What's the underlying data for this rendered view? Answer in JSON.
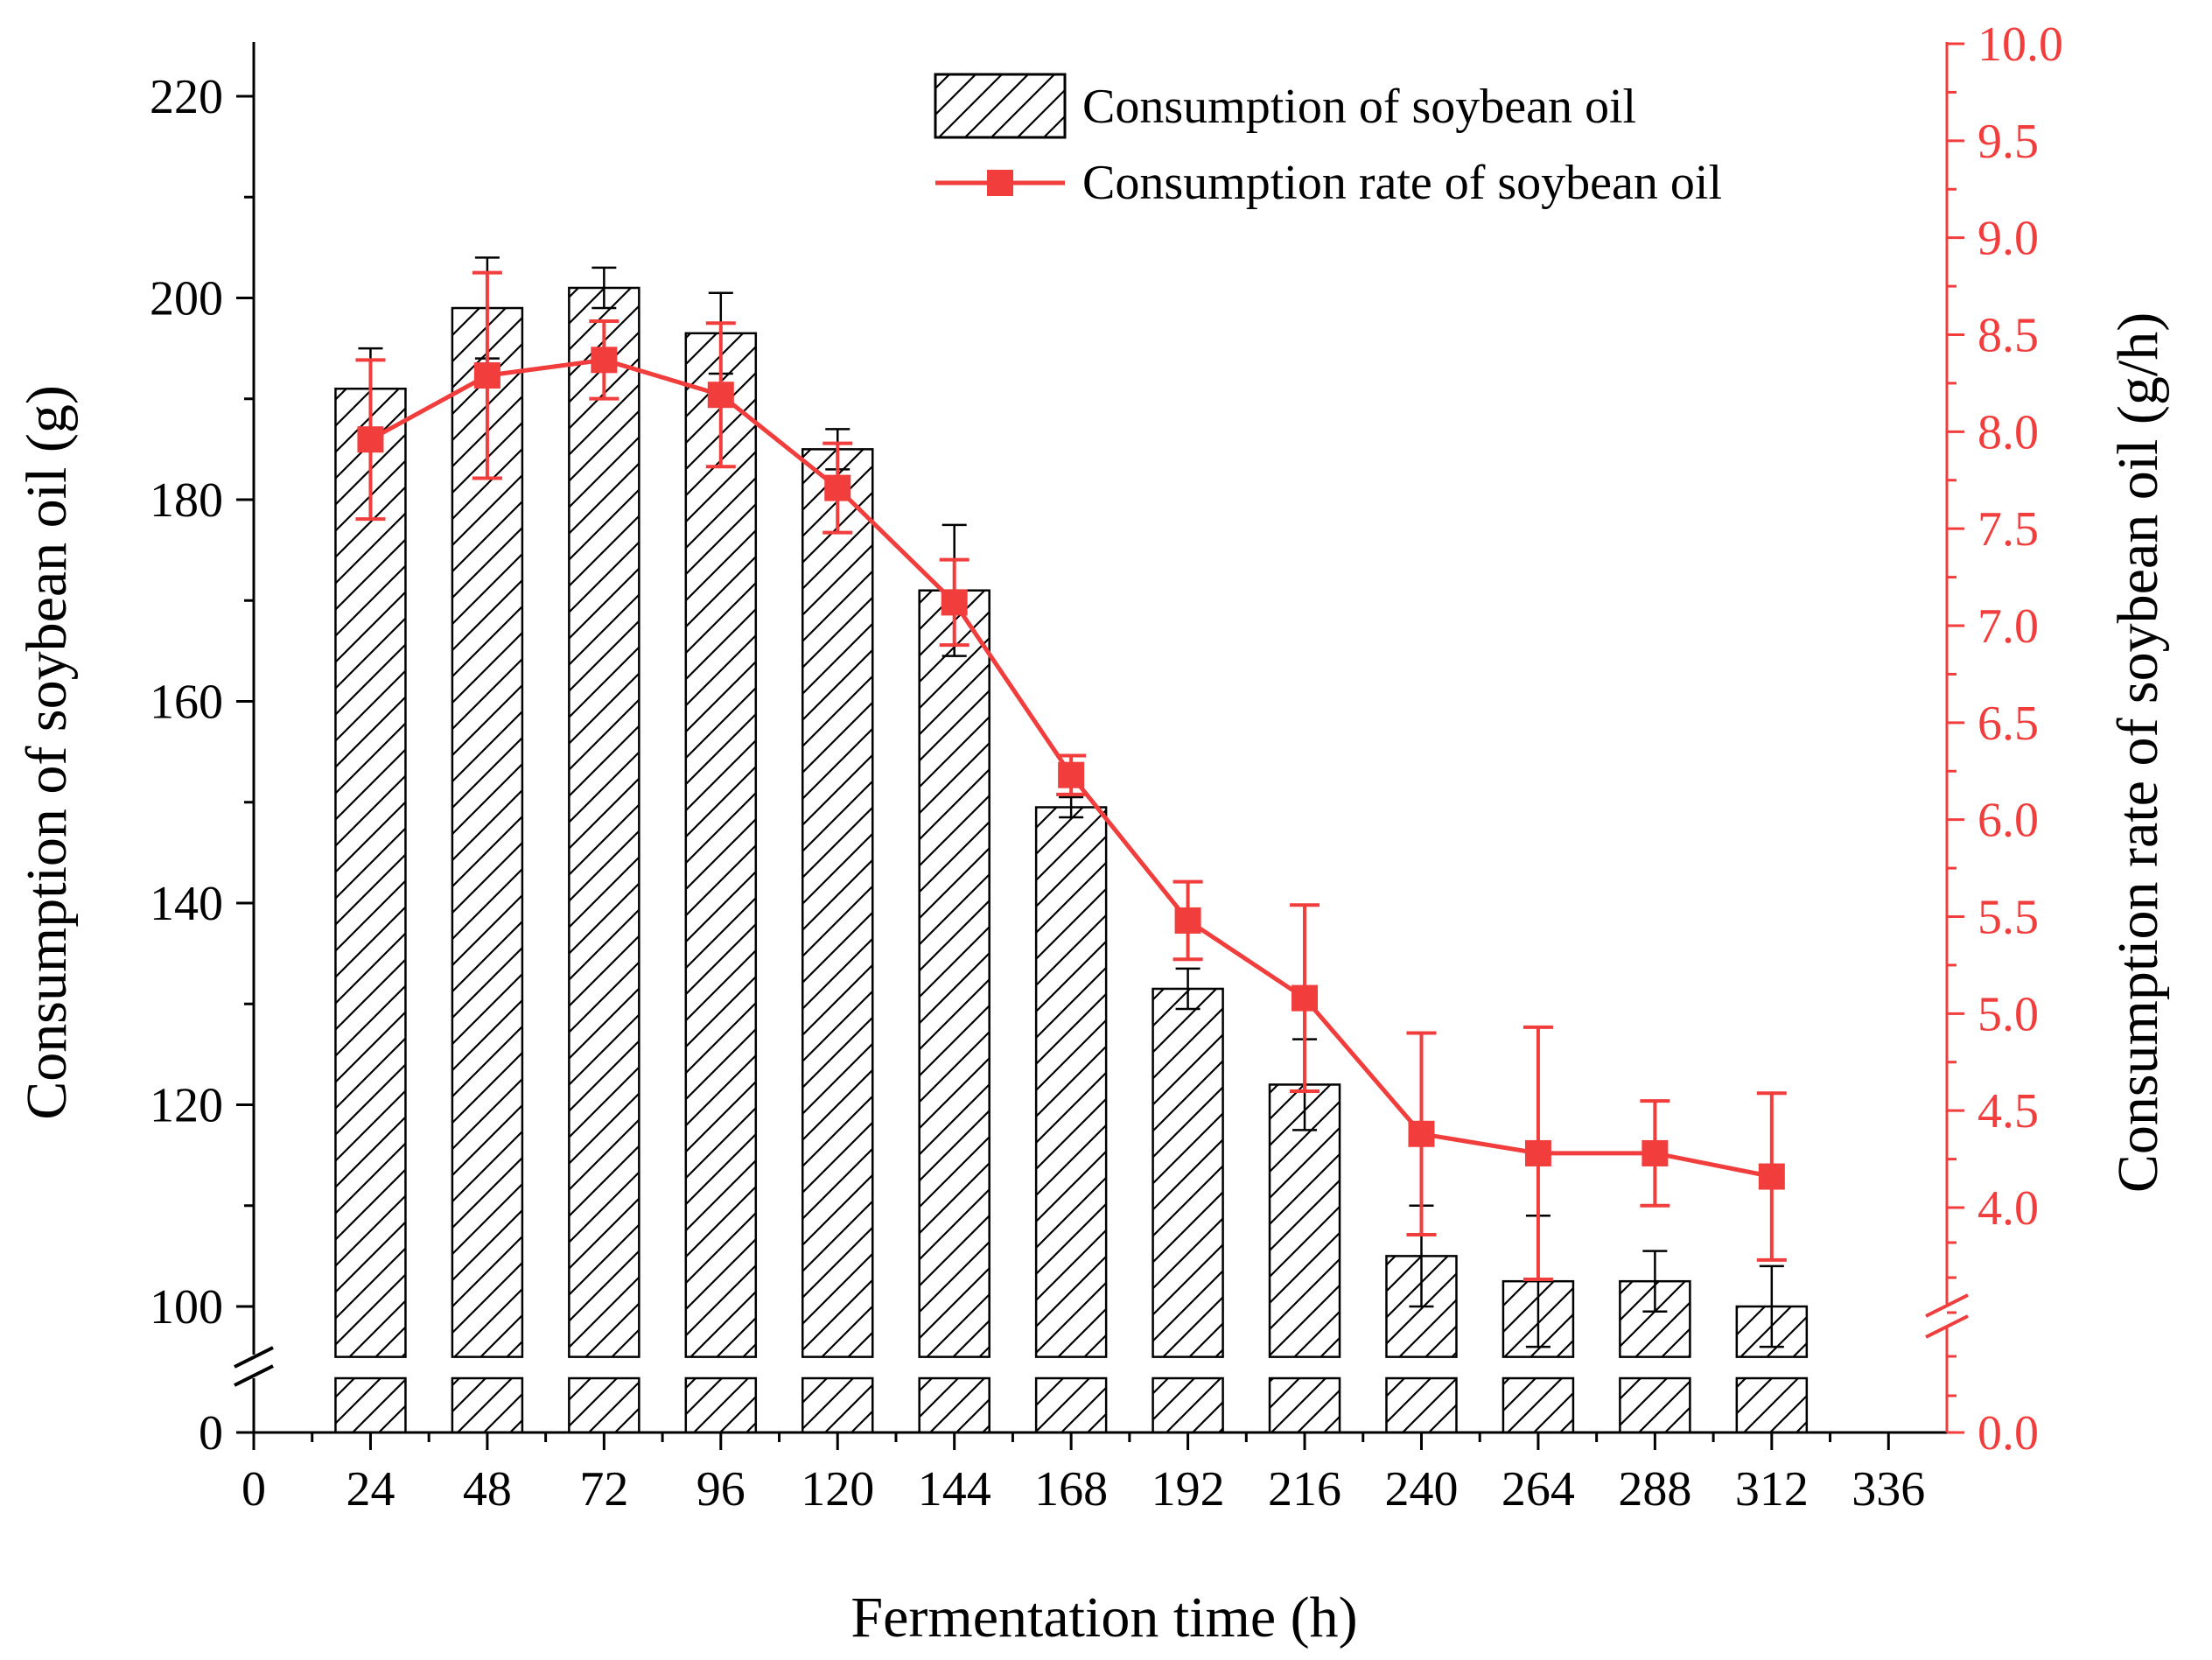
{
  "chart_data": {
    "type": "bar+line",
    "xlabel": "Fermentation time (h)",
    "ylabel_left": "Consumption of soybean oil (g)",
    "ylabel_right": "Consumption rate of soybean oil (g/h)",
    "x_ticks": [
      "0",
      "24",
      "48",
      "72",
      "96",
      "120",
      "144",
      "168",
      "192",
      "216",
      "240",
      "264",
      "288",
      "312",
      "336"
    ],
    "x_range": [
      0,
      348
    ],
    "left_axis": {
      "ticks": [
        "100",
        "120",
        "140",
        "160",
        "180",
        "200",
        "220"
      ],
      "break_tick": "0",
      "upper_range": [
        95,
        225
      ],
      "broken": true
    },
    "right_axis": {
      "ticks": [
        "4.0",
        "4.5",
        "5.0",
        "5.5",
        "6.0",
        "6.5",
        "7.0",
        "7.5",
        "8.0",
        "8.5",
        "9.0",
        "9.5",
        "10.0"
      ],
      "break_tick": "0.0",
      "upper_range": [
        3.45,
        10.0
      ],
      "broken": true,
      "color": "#f23d3d"
    },
    "series": [
      {
        "name": "Consumption of soybean oil",
        "type": "bar",
        "hatch": "diagonal",
        "x": [
          24,
          48,
          72,
          96,
          120,
          144,
          168,
          192,
          216,
          240,
          264,
          288,
          312
        ],
        "values": [
          191.0,
          199.0,
          201.0,
          196.5,
          185.0,
          171.0,
          149.5,
          131.5,
          122.0,
          105.0,
          102.5,
          102.5,
          100.0
        ],
        "errors": [
          4.0,
          5.0,
          2.0,
          4.0,
          2.0,
          6.5,
          1.0,
          2.0,
          4.5,
          5.0,
          6.5,
          3.0,
          4.0
        ]
      },
      {
        "name": "Consumption rate of soybean oil",
        "type": "line",
        "marker": "square",
        "color": "#f23d3d",
        "x": [
          24,
          48,
          72,
          96,
          120,
          144,
          168,
          192,
          216,
          240,
          264,
          288,
          312
        ],
        "values": [
          7.96,
          8.29,
          8.37,
          8.19,
          7.71,
          7.12,
          6.23,
          5.48,
          5.08,
          4.38,
          4.28,
          4.28,
          4.16
        ],
        "errors": [
          0.41,
          0.53,
          0.2,
          0.37,
          0.23,
          0.22,
          0.1,
          0.2,
          0.48,
          0.52,
          0.65,
          0.27,
          0.43
        ]
      }
    ],
    "legend_position": "top-center"
  }
}
